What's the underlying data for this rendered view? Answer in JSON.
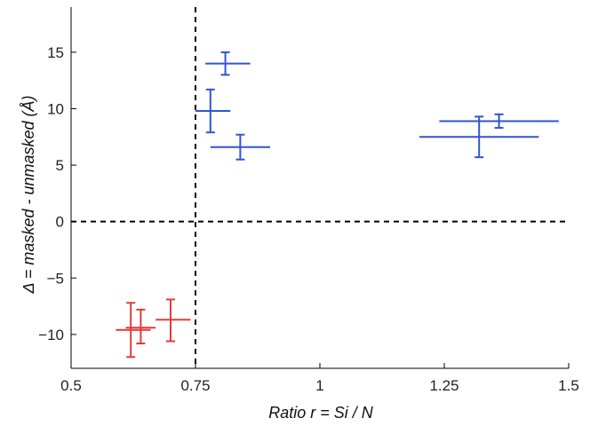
{
  "chart_data": {
    "type": "scatter",
    "title": "",
    "xlabel": "Ratio r = Si / N",
    "ylabel": "Δ = masked - unmasked (Å)",
    "xlim": [
      0.5,
      1.5
    ],
    "ylim": [
      -13,
      19
    ],
    "x_ticks": [
      0.5,
      0.75,
      1,
      1.25,
      1.5
    ],
    "x_tick_labels": [
      "0.5",
      "0.75",
      "1",
      "1.25",
      "1.5"
    ],
    "y_ticks": [
      -10,
      -5,
      0,
      5,
      10,
      15
    ],
    "y_tick_labels": [
      "−10",
      "−5",
      "0",
      "5",
      "10",
      "15"
    ],
    "grid": false,
    "reference_lines": [
      {
        "orientation": "vertical",
        "value": 0.75,
        "style": "dashed"
      },
      {
        "orientation": "horizontal",
        "value": 0,
        "style": "dashed"
      }
    ],
    "series": [
      {
        "color": "#2f55d4",
        "points": [
          {
            "x": 0.81,
            "y": 14.0,
            "x_lo": 0.77,
            "x_hi": 0.86,
            "y_lo": 13.0,
            "y_hi": 15.0
          },
          {
            "x": 0.78,
            "y": 9.8,
            "x_lo": 0.75,
            "x_hi": 0.82,
            "y_lo": 7.9,
            "y_hi": 11.7
          },
          {
            "x": 0.84,
            "y": 6.6,
            "x_lo": 0.78,
            "x_hi": 0.9,
            "y_lo": 5.5,
            "y_hi": 7.7
          },
          {
            "x": 1.36,
            "y": 8.9,
            "x_lo": 1.24,
            "x_hi": 1.48,
            "y_lo": 8.3,
            "y_hi": 9.5
          },
          {
            "x": 1.32,
            "y": 7.5,
            "x_lo": 1.2,
            "x_hi": 1.44,
            "y_lo": 5.7,
            "y_hi": 9.3
          }
        ]
      },
      {
        "color": "#e03c3c",
        "points": [
          {
            "x": 0.62,
            "y": -9.6,
            "x_lo": 0.59,
            "x_hi": 0.66,
            "y_lo": -12.0,
            "y_hi": -7.2
          },
          {
            "x": 0.64,
            "y": -9.4,
            "x_lo": 0.61,
            "x_hi": 0.67,
            "y_lo": -10.8,
            "y_hi": -7.8
          },
          {
            "x": 0.7,
            "y": -8.7,
            "x_lo": 0.67,
            "x_hi": 0.74,
            "y_lo": -10.6,
            "y_hi": -6.9
          }
        ]
      }
    ]
  }
}
